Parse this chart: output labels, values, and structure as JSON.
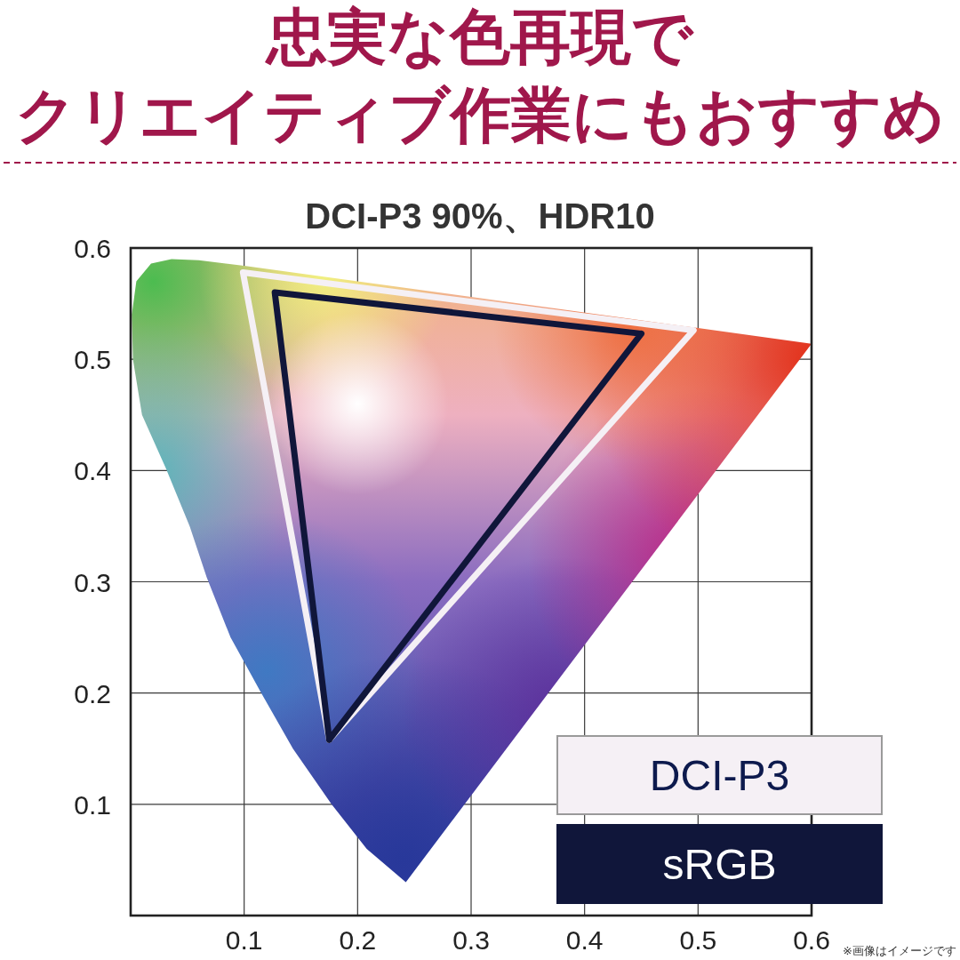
{
  "chart_data": {
    "type": "line",
    "title": "忠実な色再現でクリエイティブ作業にもおすすめ",
    "subtitle": "DCI-P3 90%、HDR10",
    "annotations": [
      "※画像はイメージです"
    ],
    "xlim": [
      0,
      0.6
    ],
    "ylim": [
      0,
      0.6
    ],
    "xticks": [
      0.1,
      0.2,
      0.3,
      0.4,
      0.5,
      0.6
    ],
    "yticks": [
      0.1,
      0.2,
      0.3,
      0.4,
      0.5,
      0.6
    ],
    "grid": true,
    "legend": "bottom right",
    "series": [
      {
        "type": "area",
        "x": [
          0.2425,
          0.208,
          0.177,
          0.143,
          0.114,
          0.088,
          0.067,
          0.052,
          0.031,
          0.01,
          0.002,
          0.001,
          0.005,
          0.018,
          0.036,
          0.06,
          0.1,
          0.3,
          0.5,
          0.6
        ],
        "values": [
          0.03,
          0.06,
          0.1,
          0.15,
          0.202,
          0.25,
          0.304,
          0.35,
          0.402,
          0.45,
          0.5,
          0.54,
          0.57,
          0.586,
          0.59,
          0.589,
          0.584,
          0.556,
          0.528,
          0.514
        ]
      },
      {
        "name": "DCI-P3",
        "color": "#f5f0f5",
        "x": [
          0.099,
          0.496,
          null,
          0.175,
          0.496,
          null,
          0.099,
          0.175
        ],
        "values": [
          0.578,
          0.526,
          null,
          0.158,
          0.526,
          null,
          0.578,
          0.158
        ]
      },
      {
        "name": "sRGB",
        "color": "#10163a",
        "x": [
          0.127,
          0.45,
          null,
          0.175,
          0.45,
          null,
          0.127,
          0.175
        ],
        "values": [
          0.56,
          0.523,
          null,
          0.158,
          0.523,
          null,
          0.56,
          0.158
        ]
      }
    ]
  }
}
